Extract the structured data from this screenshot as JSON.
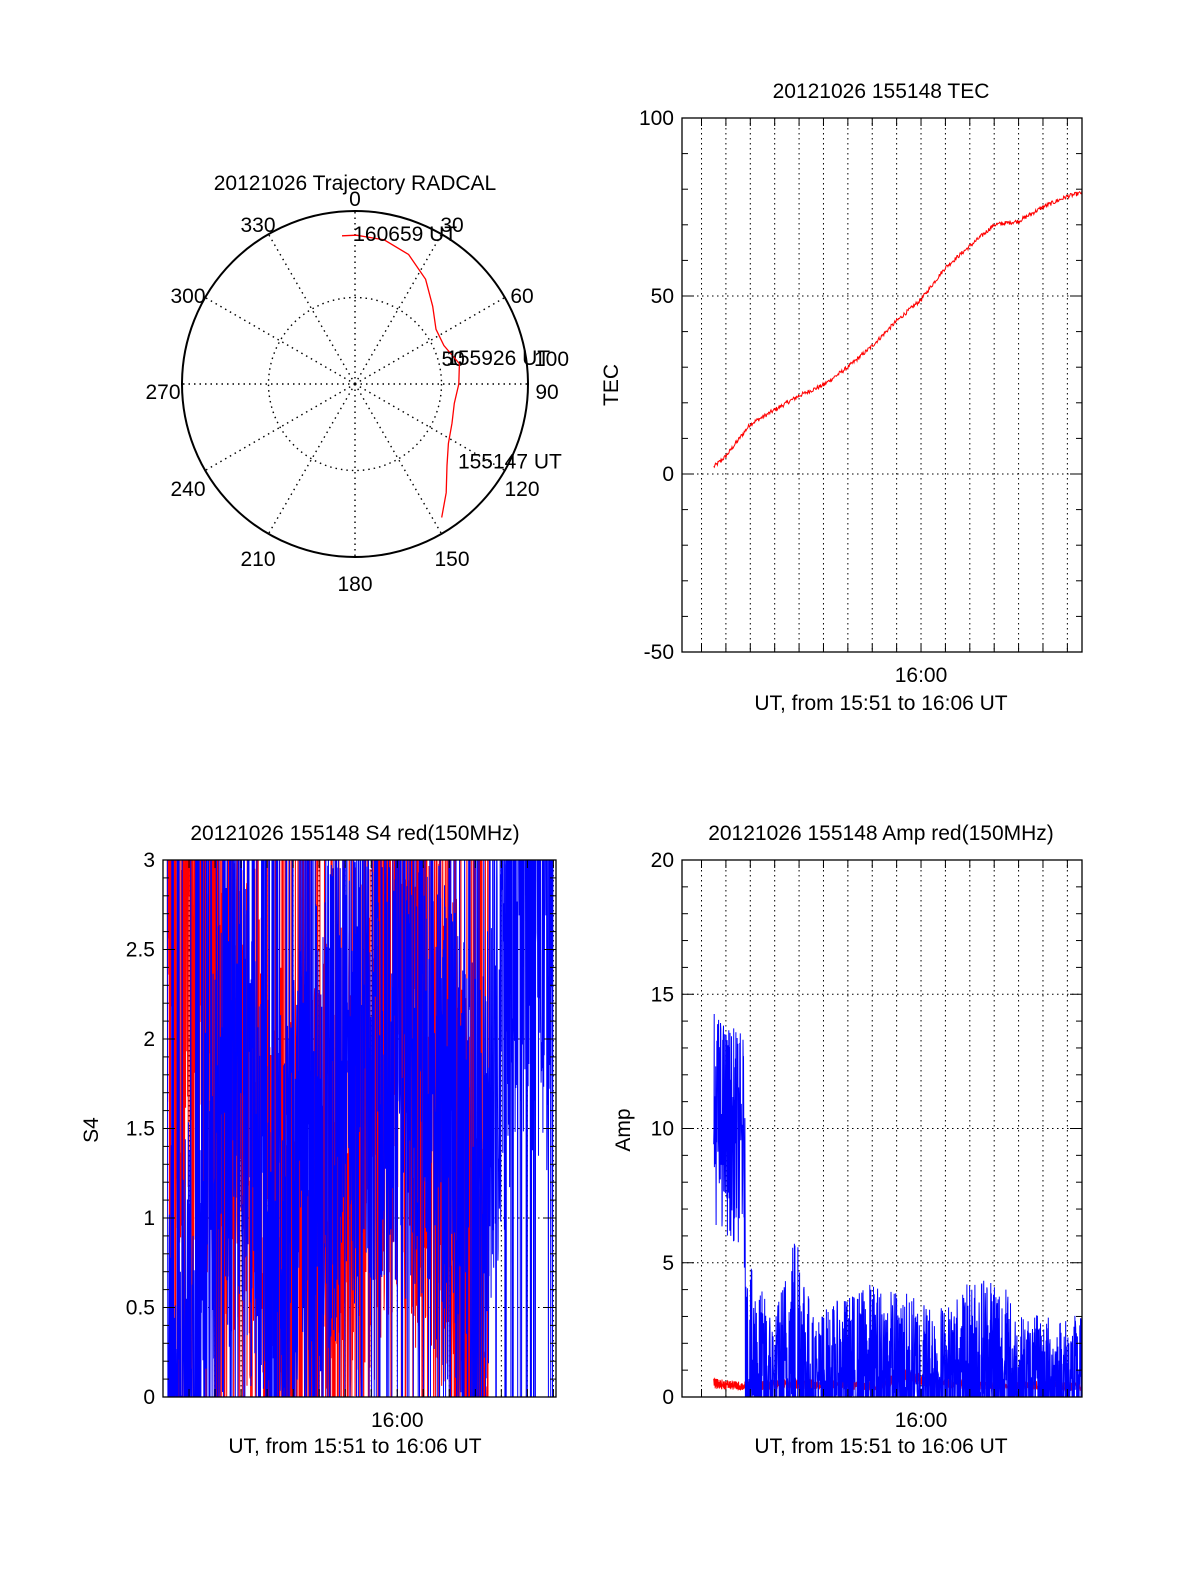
{
  "chart_data": [
    {
      "type": "polar",
      "title": "20121026 Trajectory RADCAL",
      "angle_labels": [
        "0",
        "30",
        "60",
        "90",
        "120",
        "150",
        "180",
        "210",
        "240",
        "270",
        "300",
        "330"
      ],
      "radial_labels": [
        "50",
        "100"
      ],
      "rlim": [
        0,
        100
      ],
      "grid": true,
      "colors": {
        "trajectory": "#ff0000",
        "frame": "#000000"
      },
      "series": [
        {
          "points": [
            {
              "az": 147.0,
              "r": 92.0
            },
            {
              "az": 140.0,
              "r": 82.0
            },
            {
              "az": 131.5,
              "r": 71.0
            },
            {
              "az": 122.5,
              "r": 64.0
            },
            {
              "az": 112.0,
              "r": 60.5
            },
            {
              "az": 101.0,
              "r": 58.5
            },
            {
              "az": 90.0,
              "r": 60.0
            },
            {
              "az": 79.0,
              "r": 61.5
            },
            {
              "az": 66.6,
              "r": 56.0
            },
            {
              "az": 56.0,
              "r": 56.5
            },
            {
              "az": 45.0,
              "r": 63.5
            },
            {
              "az": 34.0,
              "r": 73.0
            },
            {
              "az": 22.5,
              "r": 81.0
            },
            {
              "az": 11.5,
              "r": 85.0
            },
            {
              "az": 0.5,
              "r": 86.0
            },
            {
              "az": -5.0,
              "r": 86.0
            }
          ]
        }
      ],
      "annotations": [
        {
          "text": "160659 UT",
          "az": 3.0,
          "r": 91.0
        },
        {
          "text": "155926 UT",
          "az": 72.0,
          "r": 61.5
        },
        {
          "text": "155147 UT",
          "az": 122.0,
          "r": 77.0
        }
      ]
    },
    {
      "type": "line",
      "title": "20121026 155148 TEC",
      "xlabel": "UT, from 15:51 to 16:06 UT",
      "ylabel": "TEC",
      "xlim": [
        "15:50:12",
        "16:06:36"
      ],
      "ylim": [
        -50,
        100
      ],
      "yticks": [
        -50,
        0,
        50,
        100
      ],
      "xtick_labels": [
        {
          "t": "16:00:00",
          "label": "16:00"
        }
      ],
      "grid": true,
      "colors": {
        "tec": "#ff0000"
      },
      "series": [
        {
          "x": [
            "15:51:30",
            "15:52:00",
            "15:53:00",
            "15:54:00",
            "15:55:00",
            "15:56:00",
            "15:57:00",
            "15:58:00",
            "15:59:00",
            "16:00:00",
            "16:01:00",
            "16:02:00",
            "16:03:00",
            "16:04:00",
            "16:05:00",
            "16:06:00",
            "16:06:36"
          ],
          "values": [
            2,
            5,
            14,
            18,
            22,
            25,
            30,
            36,
            43,
            49,
            58,
            64,
            70,
            71,
            75,
            78,
            79
          ]
        }
      ]
    },
    {
      "type": "line",
      "title": "20121026 155148 S4 red(150MHz)",
      "xlabel": "UT, from 15:51 to 16:06 UT",
      "ylabel": "S4",
      "xlim": [
        "15:51:00",
        "16:06:06"
      ],
      "ylim": [
        0,
        3
      ],
      "yticks": [
        0,
        0.5,
        1,
        1.5,
        2,
        2.5,
        3
      ],
      "xtick_labels": [
        {
          "t": "16:00:00",
          "label": "16:00"
        }
      ],
      "grid": true,
      "colors": {
        "red": "#ff0000",
        "blue": "#0000ff"
      },
      "series": [
        {
          "color": "red",
          "x": [
            "15:51:10",
            "15:52:30",
            "15:54:00",
            "15:56:00",
            "15:58:00",
            "16:00:00",
            "16:02:00",
            "16:03:00",
            "16:03:30"
          ],
          "values": [
            2.6,
            2.1,
            1.8,
            0.5,
            1.2,
            2.0,
            1.6,
            0.2,
            0
          ],
          "noise": 1.6
        },
        {
          "color": "blue",
          "x": [
            "15:51:10",
            "15:52:20",
            "15:52:40",
            "15:53:30",
            "15:54:00",
            "15:55:00",
            "15:57:00",
            "15:59:00",
            "16:01:00",
            "16:02:50",
            "16:03:30",
            "16:04:30",
            "16:06:00"
          ],
          "values": [
            0.14,
            0.14,
            0.9,
            1.5,
            2.0,
            0.5,
            1.5,
            2.0,
            1.8,
            1.1,
            1.3,
            2.8,
            2.6
          ],
          "noise": 1.4
        }
      ]
    },
    {
      "type": "line",
      "title": "20121026 155148 Amp red(150MHz)",
      "xlabel": "UT, from 15:51 to 16:06 UT",
      "ylabel": "Amp",
      "xlim": [
        "15:50:12",
        "16:06:36"
      ],
      "ylim": [
        0,
        20
      ],
      "yticks": [
        0,
        5,
        10,
        15,
        20
      ],
      "xtick_labels": [
        {
          "t": "16:00:00",
          "label": "16:00"
        }
      ],
      "grid": true,
      "colors": {
        "red": "#ff0000",
        "blue": "#0000ff"
      },
      "series": [
        {
          "color": "red",
          "x": [
            "15:51:30",
            "15:52:40",
            "15:55:00",
            "15:58:00",
            "15:59:30",
            "16:00:30",
            "16:06:36"
          ],
          "values": [
            0.5,
            0.4,
            0.5,
            0.4,
            0.8,
            0.5,
            0.4
          ],
          "noise": 0.3
        },
        {
          "color": "blue",
          "x": [
            "15:51:30",
            "15:52:00",
            "15:52:45",
            "15:52:50",
            "15:54:00",
            "15:55:00",
            "15:55:30",
            "15:58:00",
            "16:01:00",
            "16:03:00",
            "16:04:00",
            "16:06:36"
          ],
          "values": [
            10.5,
            10.0,
            9.5,
            1.0,
            0.5,
            1.5,
            0.5,
            0.8,
            0.6,
            1.0,
            0.5,
            0.5
          ],
          "noise": 4.0
        }
      ]
    }
  ]
}
